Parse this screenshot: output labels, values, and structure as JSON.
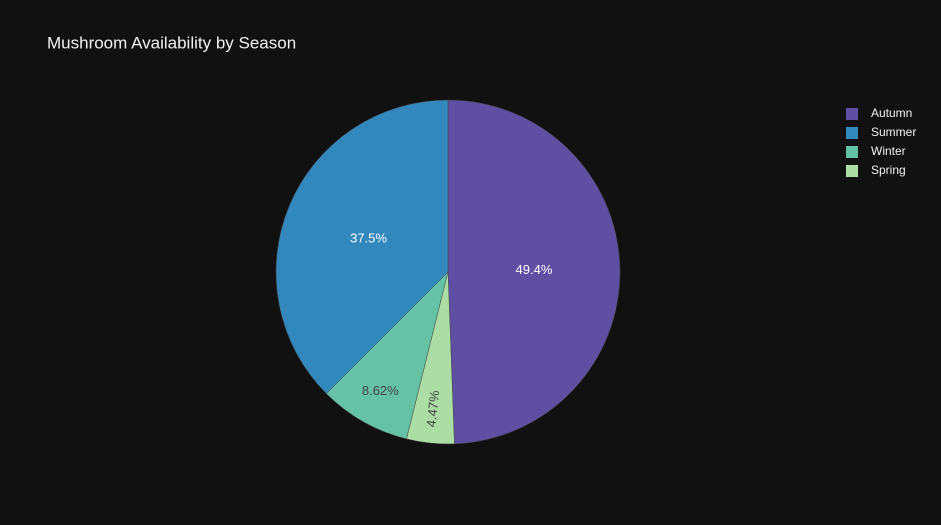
{
  "chart_data": {
    "type": "pie",
    "title": "Mushroom Availability by Season",
    "categories": [
      "Autumn",
      "Summer",
      "Winter",
      "Spring"
    ],
    "values": [
      49.4,
      37.5,
      8.62,
      4.47
    ],
    "value_labels": [
      "49.4%",
      "37.5%",
      "8.62%",
      "4.47%"
    ],
    "colors": [
      "#5e4fa2",
      "#3288bd",
      "#66c2a5",
      "#abdda4"
    ],
    "legend": "top-right"
  }
}
